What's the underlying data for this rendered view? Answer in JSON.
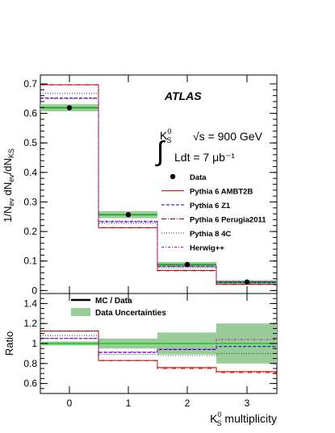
{
  "chart_data": [
    {
      "type": "line",
      "subtype": "step-histogram",
      "experiment_label": "ATLAS",
      "process_label": "K_S^0",
      "energy_label": "√s = 900 GeV",
      "lumi_label": "Ldt = 7 μb⁻¹",
      "ylabel": "1/N_ev dN_ev/dN_KS",
      "categories": [
        "0",
        "1",
        "2",
        "3"
      ],
      "ylim": [
        -0.01,
        0.73
      ],
      "yticks": [
        "0",
        "0.1",
        "0.2",
        "0.3",
        "0.4",
        "0.5",
        "0.6",
        "0.7"
      ],
      "data": {
        "name": "Data",
        "values": [
          0.619,
          0.257,
          0.088,
          0.029
        ],
        "errors": [
          0.006,
          0.005,
          0.003,
          0.002
        ],
        "band": [
          0.012,
          0.012,
          0.009,
          0.006
        ]
      },
      "series": [
        {
          "name": "Pythia 6 AMBT2B",
          "color": "#ff0000",
          "style": "solid",
          "values": [
            0.697,
            0.213,
            0.068,
            0.021
          ]
        },
        {
          "name": "Pythia 6 Z1",
          "color": "#0000cc",
          "style": "dashed",
          "values": [
            0.652,
            0.233,
            0.082,
            0.028
          ]
        },
        {
          "name": "Pythia 6 Perugia2011",
          "color": "#880000",
          "style": "dashdot",
          "values": [
            0.697,
            0.213,
            0.067,
            0.021
          ]
        },
        {
          "name": "Pythia 8 4C",
          "color": "#333333",
          "style": "dotted",
          "values": [
            0.668,
            0.228,
            0.077,
            0.026
          ]
        },
        {
          "name": "Herwig++",
          "color": "#cc00cc",
          "style": "dashdot2",
          "values": [
            0.65,
            0.235,
            0.083,
            0.03
          ]
        }
      ],
      "legend_position": "right"
    },
    {
      "type": "line",
      "subtype": "ratio",
      "ylabel": "Ratio",
      "xlabel": "K_S^0 multiplicity",
      "categories": [
        "0",
        "1",
        "2",
        "3"
      ],
      "ylim": [
        0.5,
        1.5
      ],
      "yticks": [
        "0.6",
        "0.8",
        "1",
        "1.2",
        "1.4"
      ],
      "legend": [
        "MC / Data",
        "Data Uncertainties"
      ],
      "uncertainty_band": [
        0.02,
        0.05,
        0.11,
        0.2
      ],
      "series": [
        {
          "name": "Pythia 6 AMBT2B",
          "values": [
            1.125,
            0.83,
            0.76,
            0.72
          ]
        },
        {
          "name": "Pythia 6 Z1",
          "values": [
            1.05,
            0.91,
            0.94,
            0.97
          ]
        },
        {
          "name": "Pythia 6 Perugia2011",
          "values": [
            1.125,
            0.83,
            0.75,
            0.71
          ]
        },
        {
          "name": "Pythia 8 4C",
          "values": [
            1.08,
            0.89,
            0.88,
            0.9
          ]
        },
        {
          "name": "Herwig++",
          "values": [
            1.05,
            0.915,
            0.945,
            1.04
          ]
        }
      ]
    }
  ]
}
